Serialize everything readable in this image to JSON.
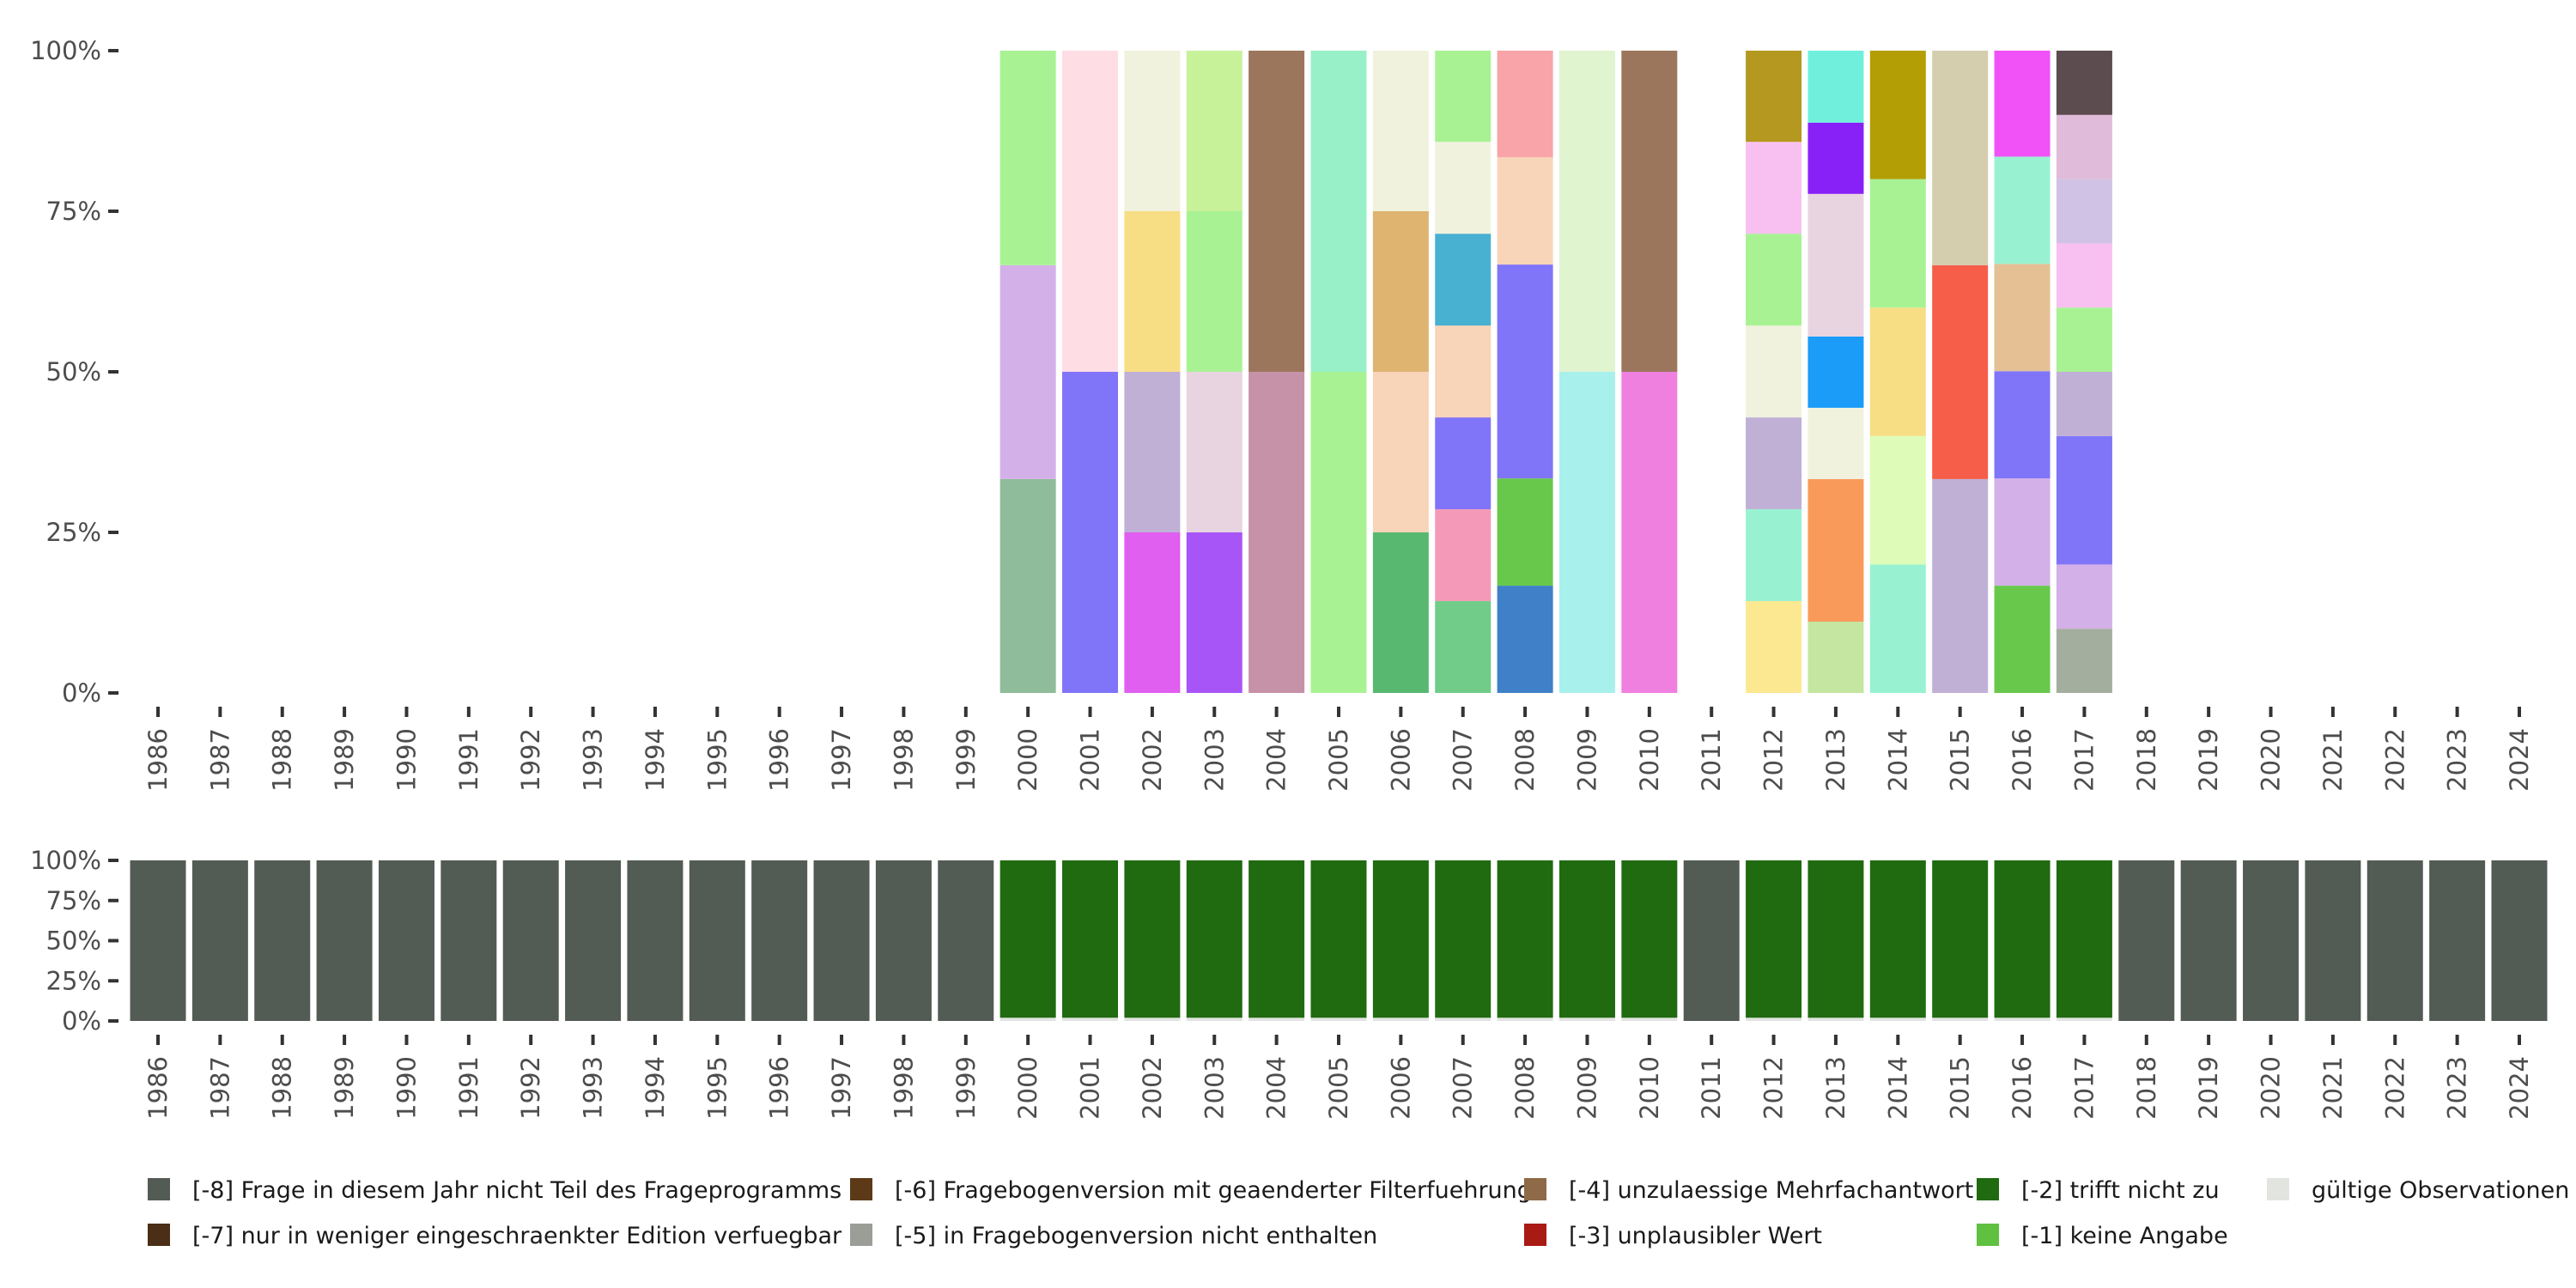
{
  "chart_data": [
    {
      "type": "bar",
      "stacked": true,
      "title": "",
      "xlabel": "",
      "ylabel": "",
      "ylim": [
        0,
        100
      ],
      "yticks": [
        "0%",
        "25%",
        "50%",
        "75%",
        "100%"
      ],
      "categories": [
        "1986",
        "1987",
        "1988",
        "1989",
        "1990",
        "1991",
        "1992",
        "1993",
        "1994",
        "1995",
        "1996",
        "1997",
        "1998",
        "1999",
        "2000",
        "2001",
        "2002",
        "2003",
        "2004",
        "2005",
        "2006",
        "2007",
        "2008",
        "2009",
        "2010",
        "2011",
        "2012",
        "2013",
        "2014",
        "2015",
        "2016",
        "2017",
        "2018",
        "2019",
        "2020",
        "2021",
        "2022",
        "2023",
        "2024"
      ],
      "stacks": {
        "2000": [
          [
            33.3,
            "#8fbc9a"
          ],
          [
            33.3,
            "#d4b0e8"
          ],
          [
            33.4,
            "#a8f294"
          ]
        ],
        "2001": [
          [
            50,
            "#8075f8"
          ],
          [
            50,
            "#ffdde4"
          ]
        ],
        "2002": [
          [
            25,
            "#e05ef0"
          ],
          [
            25,
            "#c0b0d6"
          ],
          [
            25,
            "#f7de84"
          ],
          [
            25,
            "#f0f2de"
          ]
        ],
        "2003": [
          [
            25,
            "#a855f7"
          ],
          [
            25,
            "#e8d4e0"
          ],
          [
            25,
            "#a8f294"
          ],
          [
            25,
            "#c8f29a"
          ]
        ],
        "2004": [
          [
            50,
            "#c692a8"
          ],
          [
            50,
            "#9c765c"
          ]
        ],
        "2005": [
          [
            50,
            "#a8f294"
          ],
          [
            50,
            "#98f0c8"
          ]
        ],
        "2006": [
          [
            25,
            "#58b870"
          ],
          [
            25,
            "#f8d4b8"
          ],
          [
            25,
            "#deb470"
          ],
          [
            25,
            "#f0f2de"
          ]
        ],
        "2007": [
          [
            14.3,
            "#70cc88"
          ],
          [
            14.3,
            "#f49ab8"
          ],
          [
            14.3,
            "#8075f8"
          ],
          [
            14.3,
            "#f8d4b8"
          ],
          [
            14.3,
            "#48b0d0"
          ],
          [
            14.3,
            "#f0f2de"
          ],
          [
            14.2,
            "#a8f294"
          ]
        ],
        "2008": [
          [
            16.7,
            "#4080c8"
          ],
          [
            16.7,
            "#68c84c"
          ],
          [
            33.3,
            "#8075f8"
          ],
          [
            16.7,
            "#f8d4b8"
          ],
          [
            16.6,
            "#f8a4a8"
          ]
        ],
        "2009": [
          [
            50,
            "#a8f0ec"
          ],
          [
            50,
            "#e0f4d0"
          ]
        ],
        "2010": [
          [
            50,
            "#f080e0"
          ],
          [
            50,
            "#9c765c"
          ]
        ],
        "2012": [
          [
            14.3,
            "#fce890"
          ],
          [
            14.3,
            "#98f2d2"
          ],
          [
            14.3,
            "#c0b0d6"
          ],
          [
            14.3,
            "#f0f2de"
          ],
          [
            14.3,
            "#a8f294"
          ],
          [
            14.3,
            "#f8c0f0"
          ],
          [
            14.2,
            "#b49820"
          ]
        ],
        "2013": [
          [
            11.1,
            "#c4e6a0"
          ],
          [
            22.2,
            "#fa9a5a"
          ],
          [
            11.1,
            "#f0f2de"
          ],
          [
            11.1,
            "#1a9cf8"
          ],
          [
            22.2,
            "#e8d4e0"
          ],
          [
            11.1,
            "#8820f8"
          ],
          [
            11.2,
            "#70f0dc"
          ]
        ],
        "2014": [
          [
            20,
            "#98f2d2"
          ],
          [
            20,
            "#defcb8"
          ],
          [
            20,
            "#f7de84"
          ],
          [
            20,
            "#a8f294"
          ],
          [
            20,
            "#b49e06"
          ]
        ],
        "2015": [
          [
            33.3,
            "#c0b0d6"
          ],
          [
            33.3,
            "#f65e4a"
          ],
          [
            33.4,
            "#d4ceae"
          ]
        ],
        "2016": [
          [
            16.7,
            "#68c84c"
          ],
          [
            16.7,
            "#d4b0e8"
          ],
          [
            16.7,
            "#8075f8"
          ],
          [
            16.7,
            "#e4c094"
          ],
          [
            16.7,
            "#98f2d2"
          ],
          [
            16.5,
            "#f052f8"
          ]
        ],
        "2017": [
          [
            10,
            "#a4ae9e"
          ],
          [
            10,
            "#d4b0e8"
          ],
          [
            20,
            "#8075f8"
          ],
          [
            10,
            "#c0b0d6"
          ],
          [
            10,
            "#a8f294"
          ],
          [
            10,
            "#f8c0f0"
          ],
          [
            10,
            "#d0c2e4"
          ],
          [
            10,
            "#e0bcda"
          ],
          [
            10,
            "#5c4c50"
          ]
        ]
      }
    },
    {
      "type": "bar",
      "stacked": true,
      "title": "",
      "ylim": [
        0,
        100
      ],
      "yticks": [
        "0%",
        "25%",
        "50%",
        "75%",
        "100%"
      ],
      "categories": [
        "1986",
        "1987",
        "1988",
        "1989",
        "1990",
        "1991",
        "1992",
        "1993",
        "1994",
        "1995",
        "1996",
        "1997",
        "1998",
        "1999",
        "2000",
        "2001",
        "2002",
        "2003",
        "2004",
        "2005",
        "2006",
        "2007",
        "2008",
        "2009",
        "2010",
        "2011",
        "2012",
        "2013",
        "2014",
        "2015",
        "2016",
        "2017",
        "2018",
        "2019",
        "2020",
        "2021",
        "2022",
        "2023",
        "2024"
      ],
      "program_years": [
        "2000",
        "2001",
        "2002",
        "2003",
        "2004",
        "2005",
        "2006",
        "2007",
        "2008",
        "2009",
        "2010",
        "2012",
        "2013",
        "2014",
        "2015",
        "2016",
        "2017"
      ],
      "series": [
        {
          "name": "[-8] Frage in diesem Jahr nicht Teil des Frageprogramms",
          "color": "#535b55",
          "value_in_program_years": 0,
          "value_other_years": 100
        },
        {
          "name": "gültige Observationen",
          "color": "#e2e4e0",
          "value_in_program_years": 2,
          "value_other_years": 0
        },
        {
          "name": "[-2] trifft nicht zu",
          "color": "#206a10",
          "value_in_program_years": 98,
          "value_other_years": 0
        }
      ]
    }
  ],
  "legend": [
    {
      "label": "[-8] Frage in diesem Jahr nicht Teil des Frageprogramms",
      "color": "#535b55"
    },
    {
      "label": "[-7] nur in weniger eingeschraenkter Edition verfuegbar",
      "color": "#4a2e16"
    },
    {
      "label": "[-6] Fragebogenversion mit geaenderter Filterfuehrung",
      "color": "#5c3a18"
    },
    {
      "label": "[-5] in Fragebogenversion nicht enthalten",
      "color": "#9a9e96"
    },
    {
      "label": "[-4] unzulaessige Mehrfachantwort",
      "color": "#8e6a48"
    },
    {
      "label": "[-3] unplausibler Wert",
      "color": "#aa1a14"
    },
    {
      "label": "[-2] trifft nicht zu",
      "color": "#206a10"
    },
    {
      "label": "[-1] keine Angabe",
      "color": "#60c040"
    },
    {
      "label": "gültige Observationen",
      "color": "#e2e4e0"
    }
  ]
}
